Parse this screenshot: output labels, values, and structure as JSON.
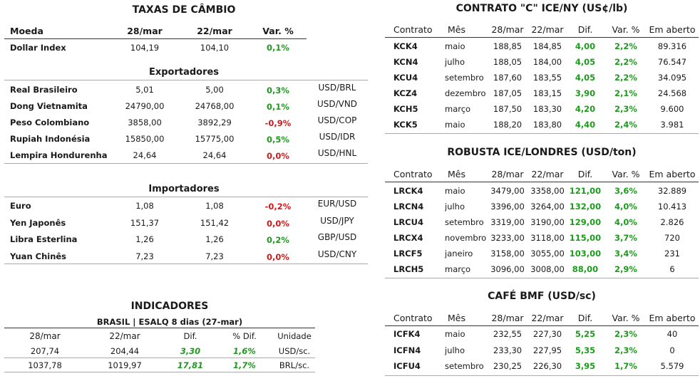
{
  "cambio": {
    "title": "TAXAS DE CÂMBIO",
    "headers": {
      "moeda": "Moeda",
      "d1": "28/mar",
      "d2": "22/mar",
      "var": "Var. %"
    },
    "dollar_index": {
      "name": "Dollar Index",
      "v1": "104,19",
      "v2": "104,10",
      "var": "0,1%"
    },
    "exportadores_title": "Exportadores",
    "exportadores": [
      {
        "name": "Real Brasileiro",
        "v1": "5,01",
        "v2": "5,00",
        "var": "0,3%",
        "pair": "USD/BRL",
        "sign": "pos"
      },
      {
        "name": "Dong Vietnamita",
        "v1": "24790,00",
        "v2": "24768,00",
        "var": "0,1%",
        "pair": "USD/VND",
        "sign": "pos"
      },
      {
        "name": "Peso Colombiano",
        "v1": "3858,00",
        "v2": "3892,29",
        "var": "-0,9%",
        "pair": "USD/COP",
        "sign": "neg"
      },
      {
        "name": "Rupiah Indonésia",
        "v1": "15850,00",
        "v2": "15775,00",
        "var": "0,5%",
        "pair": "USD/IDR",
        "sign": "pos"
      },
      {
        "name": "Lempira Hondurenha",
        "v1": "24,64",
        "v2": "24,64",
        "var": "0,0%",
        "pair": "USD/HNL",
        "sign": "neg"
      }
    ],
    "importadores_title": "Importadores",
    "importadores": [
      {
        "name": "Euro",
        "v1": "1,08",
        "v2": "1,08",
        "var": "-0,2%",
        "pair": "EUR/USD",
        "sign": "neg"
      },
      {
        "name": "Yen Japonês",
        "v1": "151,37",
        "v2": "151,42",
        "var": "0,0%",
        "pair": "USD/JPY",
        "sign": "neg"
      },
      {
        "name": "Libra Esterlina",
        "v1": "1,26",
        "v2": "1,26",
        "var": "0,2%",
        "pair": "GBP/USD",
        "sign": "pos"
      },
      {
        "name": "Yuan Chinês",
        "v1": "7,23",
        "v2": "7,23",
        "var": "0,0%",
        "pair": "USD/CNY",
        "sign": "neg"
      }
    ]
  },
  "indicadores": {
    "title": "INDICADORES",
    "subtitle": "BRASIL | ESALQ 8 dias (27-mar)",
    "headers": {
      "d1": "28/mar",
      "d2": "22/mar",
      "dif": "Dif.",
      "pdif": "% Dif.",
      "unid": "Unidade"
    },
    "rows": [
      {
        "v1": "207,74",
        "v2": "204,44",
        "dif": "3,30",
        "pdif": "1,6%",
        "unid": "USD/sc."
      },
      {
        "v1": "1037,78",
        "v2": "1019,97",
        "dif": "17,81",
        "pdif": "1,7%",
        "unid": "BRL/sc."
      }
    ]
  },
  "headers_futuros": {
    "contrato": "Contrato",
    "mes": "Mês",
    "d1": "28/mar",
    "d2": "22/mar",
    "dif": "Dif.",
    "var": "Var. %",
    "aberto": "Em aberto"
  },
  "ice_ny": {
    "title": "CONTRATO \"C\" ICE/NY (US¢/lb)",
    "rows": [
      {
        "c": "KCK4",
        "m": "maio",
        "v1": "188,85",
        "v2": "184,85",
        "dif": "4,00",
        "var": "2,2%",
        "ab": "89.316"
      },
      {
        "c": "KCN4",
        "m": "julho",
        "v1": "188,05",
        "v2": "184,00",
        "dif": "4,05",
        "var": "2,2%",
        "ab": "76.547"
      },
      {
        "c": "KCU4",
        "m": "setembro",
        "v1": "187,60",
        "v2": "183,55",
        "dif": "4,05",
        "var": "2,2%",
        "ab": "34.095"
      },
      {
        "c": "KCZ4",
        "m": "dezembro",
        "v1": "187,05",
        "v2": "183,15",
        "dif": "3,90",
        "var": "2,1%",
        "ab": "24.568"
      },
      {
        "c": "KCH5",
        "m": "março",
        "v1": "187,50",
        "v2": "183,30",
        "dif": "4,20",
        "var": "2,3%",
        "ab": "9.600"
      },
      {
        "c": "KCK5",
        "m": "maio",
        "v1": "188,20",
        "v2": "183,80",
        "dif": "4,40",
        "var": "2,4%",
        "ab": "3.981"
      }
    ]
  },
  "robusta": {
    "title": "ROBUSTA ICE/LONDRES (USD/ton)",
    "rows": [
      {
        "c": "LRCK4",
        "m": "maio",
        "v1": "3479,00",
        "v2": "3358,00",
        "dif": "121,00",
        "var": "3,6%",
        "ab": "32.889"
      },
      {
        "c": "LRCN4",
        "m": "julho",
        "v1": "3396,00",
        "v2": "3264,00",
        "dif": "132,00",
        "var": "4,0%",
        "ab": "10.413"
      },
      {
        "c": "LRCU4",
        "m": "setembro",
        "v1": "3319,00",
        "v2": "3190,00",
        "dif": "129,00",
        "var": "4,0%",
        "ab": "2.826"
      },
      {
        "c": "LRCX4",
        "m": "novembro",
        "v1": "3233,00",
        "v2": "3118,00",
        "dif": "115,00",
        "var": "3,7%",
        "ab": "720"
      },
      {
        "c": "LRCF5",
        "m": "janeiro",
        "v1": "3158,00",
        "v2": "3055,00",
        "dif": "103,00",
        "var": "3,4%",
        "ab": "231"
      },
      {
        "c": "LRCH5",
        "m": "março",
        "v1": "3096,00",
        "v2": "3008,00",
        "dif": "88,00",
        "var": "2,9%",
        "ab": "6"
      }
    ]
  },
  "bmf": {
    "title": "CAFÉ BMF (USD/sc)",
    "rows": [
      {
        "c": "ICFK4",
        "m": "maio",
        "v1": "232,55",
        "v2": "227,30",
        "dif": "5,25",
        "var": "2,3%",
        "ab": "40"
      },
      {
        "c": "ICFN4",
        "m": "julho",
        "v1": "233,30",
        "v2": "227,95",
        "dif": "5,35",
        "var": "2,3%",
        "ab": "0"
      },
      {
        "c": "ICFU4",
        "m": "setembro",
        "v1": "230,25",
        "v2": "226,30",
        "dif": "3,95",
        "var": "1,7%",
        "ab": "5.579"
      }
    ]
  },
  "colors": {
    "positive": "#1e9a1e",
    "negative": "#d01a1a"
  }
}
